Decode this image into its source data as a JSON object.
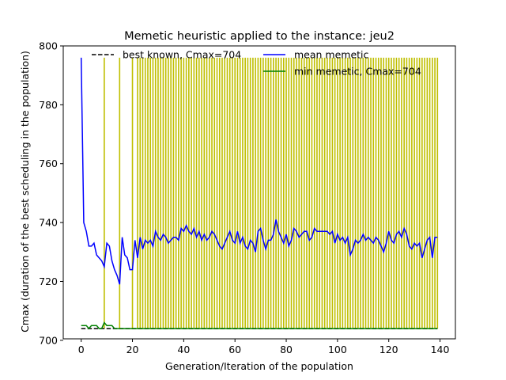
{
  "chart_data": {
    "type": "line",
    "title": "Memetic heuristic applied to the instance: jeu2",
    "xlabel": "Generation/Iteration of the population",
    "ylabel": "Cmax (duration of the best scheduling in the population)",
    "xlim": [
      -7,
      146
    ],
    "ylim": [
      700.5,
      800
    ],
    "xticks": [
      0,
      20,
      40,
      60,
      80,
      100,
      120,
      140
    ],
    "yticks": [
      700,
      720,
      740,
      760,
      780,
      800
    ],
    "grid": false,
    "legend_position": "upper-center",
    "series": [
      {
        "name": "best known, Cmax=704",
        "style": "dashed",
        "color": "#000000",
        "x": [
          0,
          139
        ],
        "values": [
          704,
          704
        ]
      },
      {
        "name": "mean memetic",
        "style": "solid",
        "color": "#0000ff",
        "x": [
          0,
          1,
          2,
          3,
          4,
          5,
          6,
          7,
          8,
          9,
          10,
          11,
          12,
          13,
          14,
          15,
          16,
          17,
          18,
          19,
          20,
          21,
          22,
          23,
          24,
          25,
          26,
          27,
          28,
          29,
          30,
          31,
          32,
          33,
          34,
          35,
          36,
          37,
          38,
          39,
          40,
          41,
          42,
          43,
          44,
          45,
          46,
          47,
          48,
          49,
          50,
          51,
          52,
          53,
          54,
          55,
          56,
          57,
          58,
          59,
          60,
          61,
          62,
          63,
          64,
          65,
          66,
          67,
          68,
          69,
          70,
          71,
          72,
          73,
          74,
          75,
          76,
          77,
          78,
          79,
          80,
          81,
          82,
          83,
          84,
          85,
          86,
          87,
          88,
          89,
          90,
          91,
          92,
          93,
          94,
          95,
          96,
          97,
          98,
          99,
          100,
          101,
          102,
          103,
          104,
          105,
          106,
          107,
          108,
          109,
          110,
          111,
          112,
          113,
          114,
          115,
          116,
          117,
          118,
          119,
          120,
          121,
          122,
          123,
          124,
          125,
          126,
          127,
          128,
          129,
          130,
          131,
          132,
          133,
          134,
          135,
          136,
          137,
          138,
          139
        ],
        "values": [
          796,
          740,
          737,
          732,
          732,
          733,
          729,
          728,
          727,
          725,
          733,
          732,
          727,
          724,
          722,
          719,
          735,
          729,
          728,
          724,
          724,
          734,
          728,
          735,
          731,
          734,
          733,
          734,
          732,
          737,
          735,
          734,
          736,
          735,
          733,
          734,
          735,
          735,
          734,
          738,
          737,
          739,
          737,
          736,
          738,
          735,
          737,
          734,
          736,
          734,
          735,
          737,
          736,
          734,
          732,
          731,
          733,
          735,
          737,
          734,
          733,
          737,
          733,
          735,
          732,
          731,
          734,
          733,
          730,
          737,
          738,
          734,
          731,
          734,
          734,
          736,
          741,
          737,
          735,
          733,
          736,
          732,
          734,
          738,
          737,
          735,
          736,
          737,
          737,
          734,
          735,
          738,
          737,
          737,
          737,
          737,
          737,
          736,
          737,
          733,
          736,
          734,
          735,
          733,
          735,
          729,
          731,
          734,
          733,
          734,
          736,
          734,
          735,
          734,
          733,
          735,
          734,
          732,
          730,
          733,
          737,
          734,
          733,
          736,
          737,
          735,
          738,
          736,
          732,
          731,
          733,
          732,
          733,
          728,
          731,
          734,
          735,
          728,
          735,
          735
        ]
      },
      {
        "name": "min memetic, Cmax=704",
        "style": "solid",
        "color": "#008000",
        "x": [
          0,
          1,
          2,
          3,
          4,
          5,
          6,
          7,
          8,
          9,
          10,
          11,
          12,
          13,
          14,
          15,
          16,
          17,
          18,
          19,
          20,
          21,
          139
        ],
        "values": [
          705,
          705,
          705,
          704,
          705,
          705,
          705,
          704,
          704,
          706,
          705,
          705,
          705,
          704,
          704,
          704,
          704,
          704,
          704,
          704,
          704,
          704,
          704
        ]
      }
    ],
    "vertical_lines": {
      "color": "#bfbf00",
      "ymin": 704,
      "ymax": 796,
      "x": [
        9,
        15,
        20,
        22,
        23,
        24,
        25,
        26,
        27,
        28,
        29,
        30,
        31,
        32,
        33,
        34,
        35,
        36,
        37,
        38,
        39,
        40,
        41,
        42,
        43,
        44,
        45,
        46,
        47,
        48,
        49,
        50,
        51,
        52,
        53,
        54,
        55,
        56,
        57,
        58,
        59,
        60,
        61,
        62,
        63,
        64,
        65,
        66,
        67,
        68,
        69,
        70,
        71,
        72,
        73,
        74,
        75,
        76,
        77,
        78,
        79,
        80,
        81,
        82,
        83,
        84,
        85,
        86,
        87,
        88,
        89,
        90,
        91,
        92,
        93,
        94,
        95,
        96,
        97,
        98,
        99,
        100,
        101,
        102,
        103,
        104,
        105,
        106,
        107,
        108,
        109,
        110,
        111,
        112,
        113,
        114,
        115,
        116,
        117,
        118,
        119,
        120,
        121,
        122,
        123,
        124,
        125,
        126,
        127,
        128,
        129,
        130,
        131,
        132,
        133,
        134,
        135,
        136,
        137,
        138,
        139
      ]
    }
  }
}
